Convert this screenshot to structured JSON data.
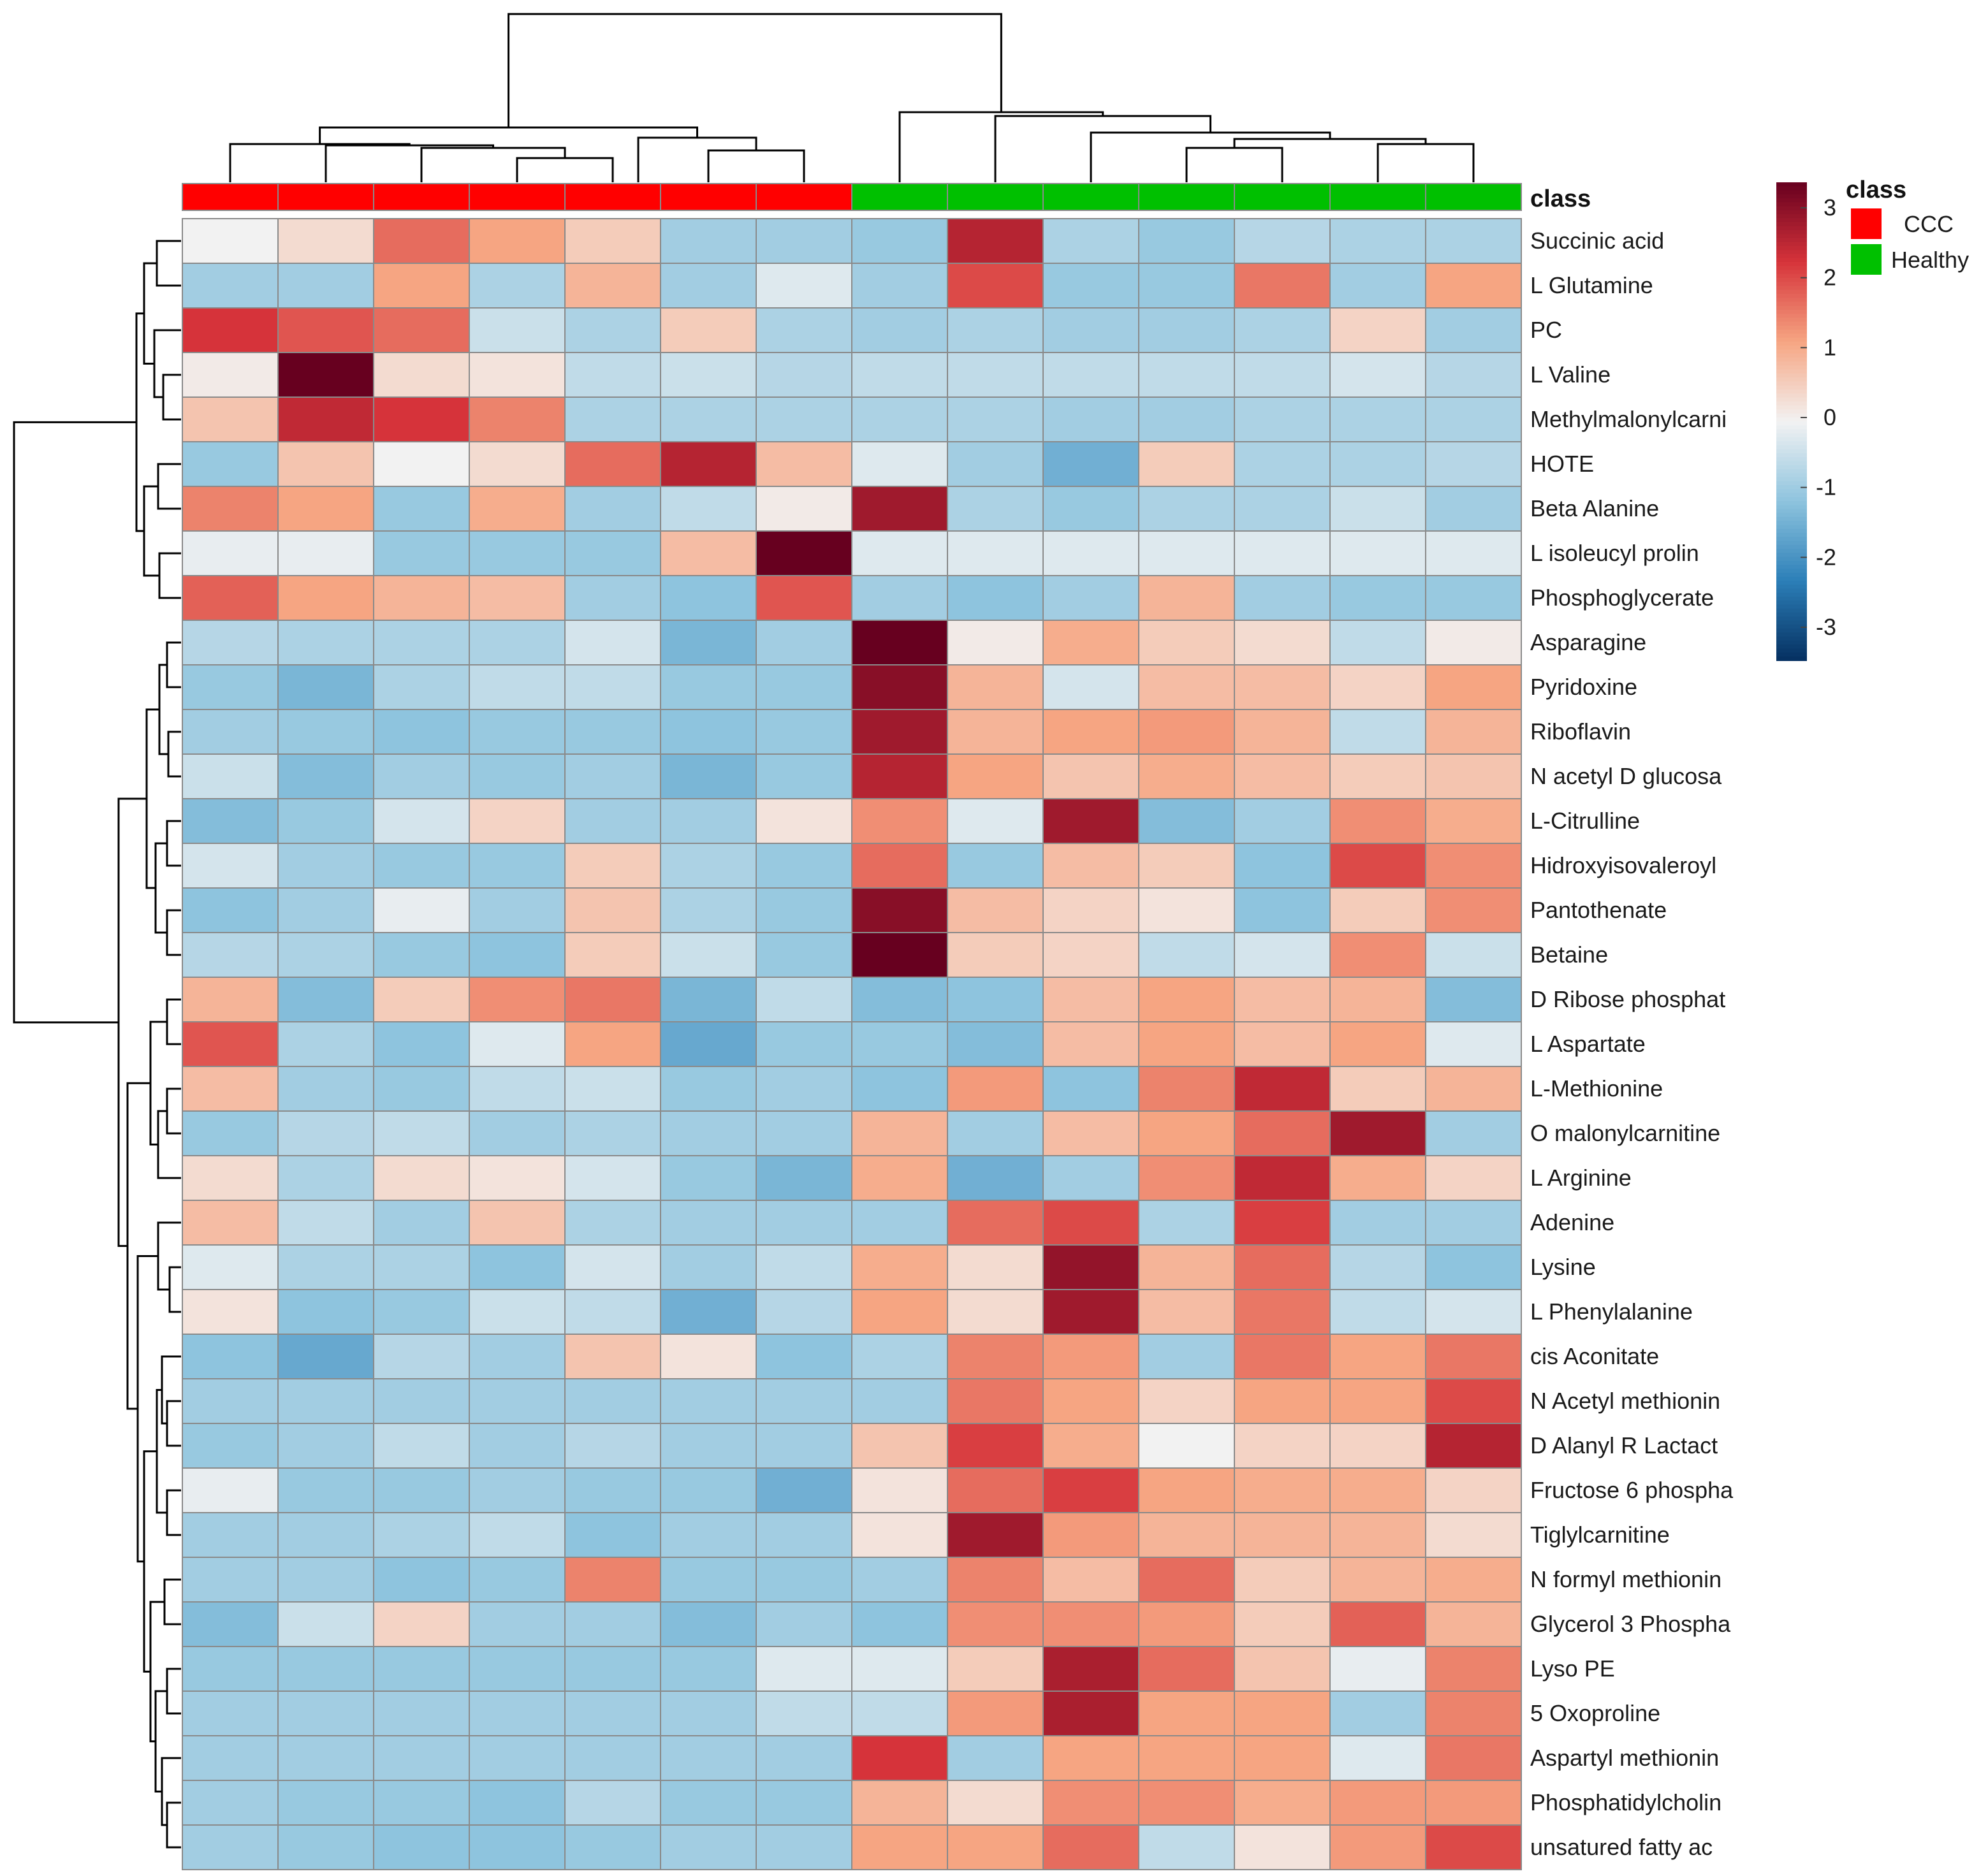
{
  "chart_data": {
    "type": "heatmap",
    "annotation_title": "class",
    "column_classes": [
      "CCC",
      "CCC",
      "CCC",
      "CCC",
      "CCC",
      "CCC",
      "CCC",
      "Healthy",
      "Healthy",
      "Healthy",
      "Healthy",
      "Healthy",
      "Healthy",
      "Healthy"
    ],
    "rows": [
      "Succinic acid",
      "L Glutamine",
      "PC",
      "L Valine",
      "Methylmalonylcarni",
      "HOTE",
      "Beta Alanine",
      "L isoleucyl prolin",
      "Phosphoglycerate",
      "Asparagine",
      "Pyridoxine",
      "Riboflavin",
      "N acetyl D glucosa",
      "L-Citrulline",
      "Hidroxyisovaleroyl",
      "Pantothenate",
      "Betaine",
      "D Ribose  phosphat",
      "L Aspartate",
      "L-Methionine",
      "O malonylcarnitine",
      "L Arginine",
      "Adenine",
      "Lysine",
      "L Phenylalanine",
      "cis Aconitate",
      "N Acetyl methionin",
      "D Alanyl R Lactact",
      "Fructose 6 phospha",
      "Tiglylcarnitine",
      "N formyl methionin",
      "Glycerol 3 Phospha",
      "Lyso PE",
      "5 Oxoproline",
      "Aspartyl methionin",
      "Phosphatidylcholin",
      "unsatured fatty ac"
    ],
    "values": [
      [
        0.0,
        0.3,
        1.5,
        1.0,
        0.5,
        -0.8,
        -0.8,
        -0.9,
        2.3,
        -0.7,
        -0.9,
        -0.6,
        -0.7,
        -0.7
      ],
      [
        -0.8,
        -0.8,
        1.0,
        -0.7,
        0.8,
        -0.8,
        -0.2,
        -0.8,
        1.8,
        -0.9,
        -0.9,
        1.4,
        -0.8,
        1.0
      ],
      [
        2.0,
        1.7,
        1.5,
        -0.4,
        -0.7,
        0.5,
        -0.7,
        -0.8,
        -0.7,
        -0.8,
        -0.8,
        -0.7,
        0.4,
        -0.8
      ],
      [
        0.1,
        3.3,
        0.3,
        0.2,
        -0.5,
        -0.4,
        -0.6,
        -0.5,
        -0.5,
        -0.5,
        -0.5,
        -0.5,
        -0.3,
        -0.6
      ],
      [
        0.6,
        2.2,
        2.0,
        1.3,
        -0.7,
        -0.7,
        -0.7,
        -0.7,
        -0.7,
        -0.8,
        -0.8,
        -0.7,
        -0.7,
        -0.7
      ],
      [
        -0.9,
        0.6,
        0.0,
        0.3,
        1.5,
        2.3,
        0.7,
        -0.2,
        -0.8,
        -1.3,
        0.5,
        -0.7,
        -0.7,
        -0.6
      ],
      [
        1.3,
        1.0,
        -0.9,
        0.9,
        -0.8,
        -0.5,
        0.1,
        2.5,
        -0.7,
        -0.9,
        -0.7,
        -0.7,
        -0.4,
        -0.8
      ],
      [
        -0.1,
        -0.1,
        -0.9,
        -0.9,
        -0.9,
        0.7,
        3.3,
        -0.2,
        -0.2,
        -0.2,
        -0.2,
        -0.2,
        -0.2,
        -0.2
      ],
      [
        1.6,
        1.0,
        0.8,
        0.7,
        -0.8,
        -1.0,
        1.7,
        -0.8,
        -1.0,
        -0.8,
        0.8,
        -0.8,
        -0.9,
        -0.9
      ],
      [
        -0.6,
        -0.7,
        -0.7,
        -0.7,
        -0.3,
        -1.2,
        -0.8,
        3.2,
        0.1,
        0.9,
        0.5,
        0.3,
        -0.5,
        0.1
      ],
      [
        -0.9,
        -1.2,
        -0.7,
        -0.5,
        -0.5,
        -0.9,
        -0.9,
        2.7,
        0.8,
        -0.3,
        0.7,
        0.7,
        0.4,
        1.0
      ],
      [
        -0.8,
        -0.9,
        -1.0,
        -0.9,
        -0.9,
        -1.0,
        -0.9,
        2.5,
        0.8,
        1.0,
        1.1,
        0.8,
        -0.5,
        0.8
      ],
      [
        -0.4,
        -1.1,
        -0.8,
        -0.9,
        -0.8,
        -1.2,
        -0.9,
        2.3,
        1.0,
        0.6,
        0.9,
        0.7,
        0.5,
        0.6
      ],
      [
        -1.1,
        -0.9,
        -0.3,
        0.4,
        -0.8,
        -0.8,
        0.2,
        1.2,
        -0.2,
        2.5,
        -1.1,
        -0.8,
        1.2,
        0.9
      ],
      [
        -0.3,
        -0.8,
        -0.9,
        -0.9,
        0.5,
        -0.7,
        -0.9,
        1.5,
        -0.9,
        0.7,
        0.5,
        -1.0,
        1.8,
        1.2
      ],
      [
        -1.0,
        -0.8,
        -0.1,
        -0.8,
        0.6,
        -0.7,
        -0.9,
        2.7,
        0.7,
        0.4,
        0.2,
        -1.0,
        0.5,
        1.2
      ],
      [
        -0.6,
        -0.7,
        -0.9,
        -1.0,
        0.5,
        -0.4,
        -0.9,
        3.0,
        0.5,
        0.4,
        -0.5,
        -0.3,
        1.2,
        -0.4
      ],
      [
        0.8,
        -1.1,
        0.5,
        1.2,
        1.4,
        -1.2,
        -0.5,
        -1.1,
        -1.0,
        0.7,
        1.0,
        0.7,
        0.8,
        -1.1
      ],
      [
        1.7,
        -0.7,
        -1.0,
        -0.2,
        1.0,
        -1.4,
        -0.9,
        -0.9,
        -1.1,
        0.7,
        1.0,
        0.7,
        1.0,
        -0.2
      ],
      [
        0.7,
        -0.8,
        -0.9,
        -0.5,
        -0.4,
        -0.9,
        -0.8,
        -1.0,
        1.1,
        -1.0,
        1.3,
        2.2,
        0.5,
        0.8
      ],
      [
        -0.9,
        -0.6,
        -0.5,
        -0.8,
        -0.7,
        -0.8,
        -0.8,
        0.8,
        -0.8,
        0.7,
        1.0,
        1.5,
        2.5,
        -0.8
      ],
      [
        0.3,
        -0.7,
        0.3,
        0.2,
        -0.3,
        -0.9,
        -1.2,
        0.9,
        -1.3,
        -0.8,
        1.2,
        2.2,
        0.9,
        0.4
      ],
      [
        0.7,
        -0.5,
        -0.8,
        0.6,
        -0.7,
        -0.8,
        -0.8,
        -0.8,
        1.5,
        1.8,
        -0.7,
        1.9,
        -0.8,
        -0.8
      ],
      [
        -0.2,
        -0.7,
        -0.7,
        -1.0,
        -0.3,
        -0.8,
        -0.5,
        0.9,
        0.3,
        2.6,
        0.8,
        1.5,
        -0.6,
        -1.0
      ],
      [
        0.2,
        -1.0,
        -0.9,
        -0.4,
        -0.5,
        -1.3,
        -0.6,
        1.0,
        0.3,
        2.5,
        0.7,
        1.4,
        -0.5,
        -0.3
      ],
      [
        -1.0,
        -1.4,
        -0.6,
        -0.8,
        0.6,
        0.2,
        -1.0,
        -0.7,
        1.3,
        1.1,
        -0.8,
        1.4,
        1.0,
        1.4
      ],
      [
        -0.8,
        -0.8,
        -0.8,
        -0.8,
        -0.8,
        -0.8,
        -0.8,
        -0.8,
        1.4,
        1.0,
        0.4,
        1.0,
        1.0,
        1.8
      ],
      [
        -0.9,
        -0.8,
        -0.5,
        -0.8,
        -0.6,
        -0.8,
        -0.8,
        0.6,
        1.9,
        0.9,
        0.0,
        0.4,
        0.4,
        2.3
      ],
      [
        -0.1,
        -0.9,
        -0.9,
        -0.8,
        -0.9,
        -0.9,
        -1.3,
        0.2,
        1.5,
        1.9,
        1.0,
        0.9,
        0.9,
        0.4
      ],
      [
        -0.8,
        -0.8,
        -0.7,
        -0.5,
        -1.0,
        -0.8,
        -0.8,
        0.2,
        2.5,
        1.1,
        0.8,
        0.8,
        0.8,
        0.3
      ],
      [
        -0.8,
        -0.8,
        -1.0,
        -0.9,
        1.3,
        -0.9,
        -0.9,
        -0.8,
        1.3,
        0.7,
        1.5,
        0.5,
        0.8,
        0.9
      ],
      [
        -1.1,
        -0.4,
        0.4,
        -0.8,
        -0.8,
        -1.1,
        -0.8,
        -1.0,
        1.2,
        1.2,
        1.1,
        0.5,
        1.6,
        0.8
      ],
      [
        -0.9,
        -0.9,
        -0.9,
        -0.9,
        -0.9,
        -0.9,
        -0.2,
        -0.2,
        0.5,
        2.4,
        1.5,
        0.6,
        -0.1,
        1.3
      ],
      [
        -0.8,
        -0.8,
        -0.8,
        -0.8,
        -0.8,
        -0.8,
        -0.5,
        -0.5,
        1.1,
        2.4,
        1.0,
        1.0,
        -0.8,
        1.3
      ],
      [
        -0.8,
        -0.8,
        -0.8,
        -0.8,
        -0.8,
        -0.8,
        -0.8,
        2.0,
        -0.8,
        1.0,
        1.0,
        1.0,
        -0.2,
        1.4
      ],
      [
        -0.8,
        -0.9,
        -0.9,
        -1.0,
        -0.6,
        -0.9,
        -0.9,
        0.8,
        0.3,
        1.2,
        1.2,
        0.9,
        1.1,
        1.1
      ],
      [
        -0.8,
        -0.9,
        -1.0,
        -1.0,
        -0.9,
        -0.8,
        -0.8,
        1.0,
        1.0,
        1.5,
        -0.5,
        0.2,
        1.1,
        1.8
      ]
    ],
    "color_scale": {
      "min": -3,
      "max": 3,
      "ticks": [
        3,
        2,
        1,
        0,
        -1,
        -2,
        -3
      ],
      "low": "#053061",
      "mid": "#f7f7f7",
      "high": "#67001f"
    },
    "legend": {
      "title": "class",
      "entries": [
        {
          "label": "CCC",
          "color": "#ff0000"
        },
        {
          "label": "Healthy",
          "color": "#00c000"
        }
      ]
    },
    "column_dendrogram_order_pairs": [
      [
        0,
        1
      ],
      [
        2,
        3
      ],
      [
        4,
        5
      ],
      [
        6,
        7
      ],
      [
        8,
        9
      ],
      [
        10,
        11
      ],
      [
        12,
        13
      ]
    ],
    "grid": true,
    "legend_position": "right"
  }
}
